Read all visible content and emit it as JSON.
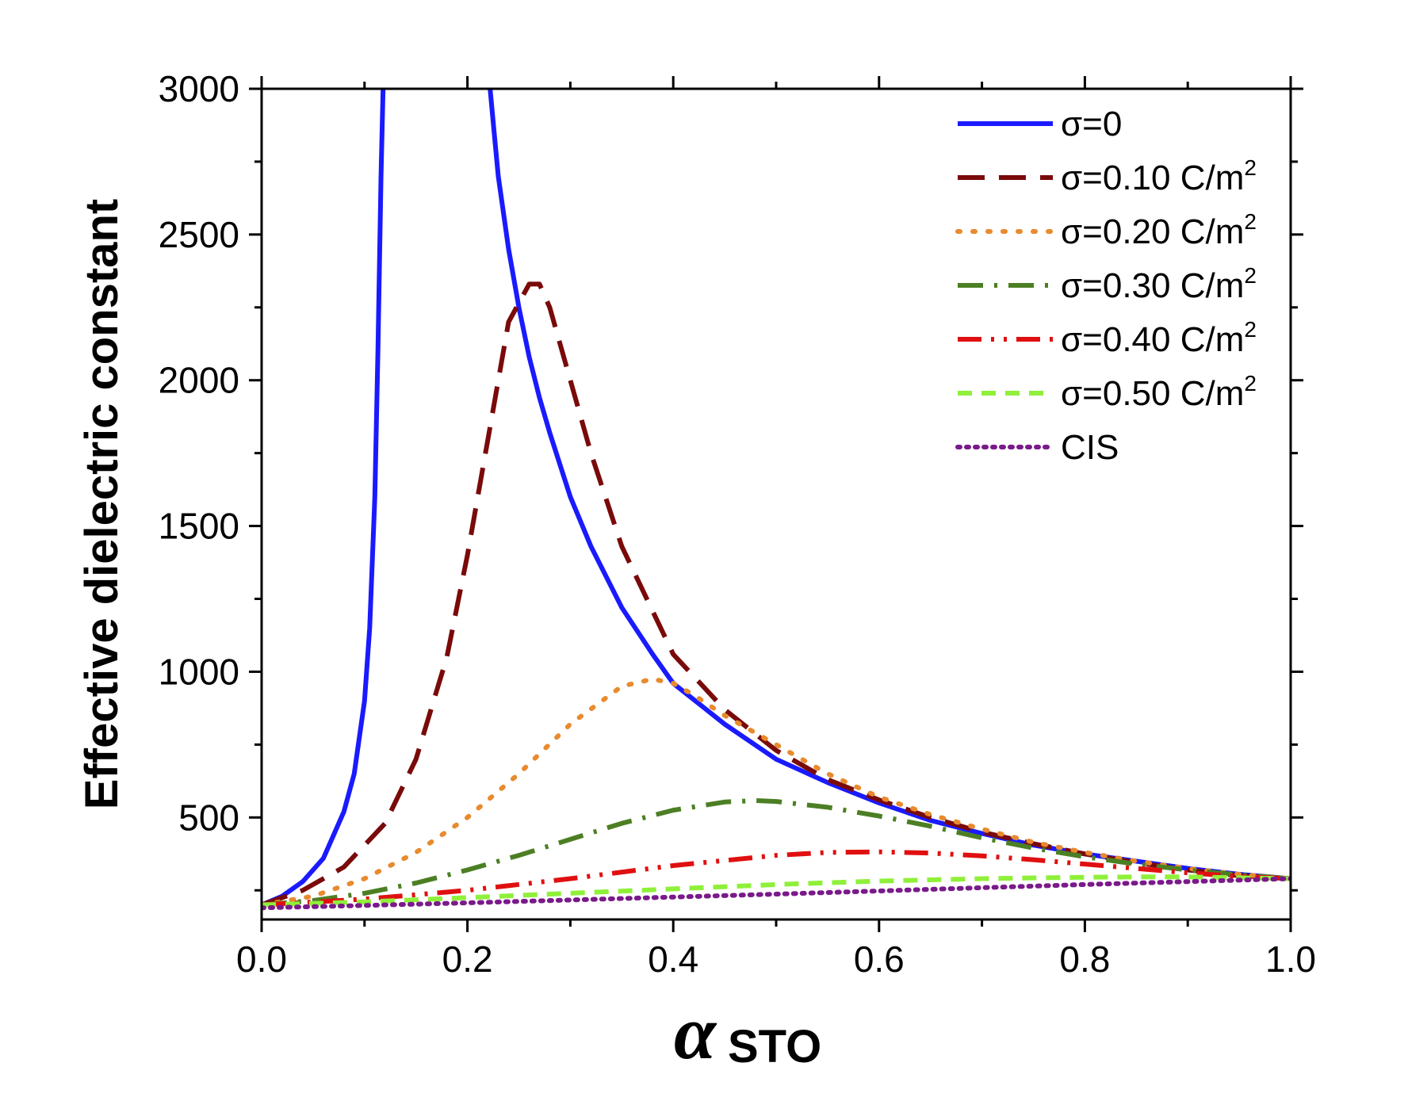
{
  "chart_data": {
    "type": "line",
    "xlabel": "α",
    "xlabel_subscript": "STO",
    "ylabel": "Effective dielectric constant",
    "xlim": [
      0.0,
      1.0
    ],
    "ylim": [
      150,
      3000
    ],
    "xticks": [
      "0.0",
      "0.2",
      "0.4",
      "0.6",
      "0.8",
      "1.0"
    ],
    "yticks": [
      "500",
      "1000",
      "1500",
      "2000",
      "2500",
      "3000"
    ],
    "legend_position": "top-right",
    "grid": false,
    "series": [
      {
        "name": "σ=0",
        "sup": "",
        "color": "#1a1aff",
        "style": "solid",
        "x": [
          0.0,
          0.02,
          0.04,
          0.06,
          0.08,
          0.09,
          0.1,
          0.105,
          0.11,
          0.113,
          0.116,
          0.118,
          null,
          0.222,
          0.226,
          0.23,
          0.24,
          0.25,
          0.26,
          0.27,
          0.28,
          0.3,
          0.32,
          0.35,
          0.38,
          0.4,
          0.45,
          0.5,
          0.55,
          0.6,
          0.65,
          0.7,
          0.75,
          0.8,
          0.85,
          0.9,
          0.95,
          1.0
        ],
        "y": [
          200,
          230,
          280,
          360,
          520,
          650,
          900,
          1150,
          1600,
          2100,
          2700,
          3000,
          null,
          3000,
          2850,
          2700,
          2450,
          2250,
          2080,
          1940,
          1820,
          1600,
          1430,
          1220,
          1060,
          960,
          820,
          700,
          620,
          550,
          490,
          445,
          405,
          375,
          350,
          325,
          305,
          290
        ]
      },
      {
        "name": "σ=0.10 C/m",
        "sup": "2",
        "color": "#7a0a0a",
        "style": "dash",
        "x": [
          0.0,
          0.04,
          0.08,
          0.12,
          0.15,
          0.18,
          0.2,
          0.22,
          0.24,
          0.26,
          0.27,
          0.28,
          0.3,
          0.32,
          0.35,
          0.4,
          0.45,
          0.5,
          0.55,
          0.6,
          0.65,
          0.7,
          0.75,
          0.8,
          0.85,
          0.9,
          0.95,
          1.0
        ],
        "y": [
          200,
          250,
          330,
          480,
          700,
          1050,
          1400,
          1800,
          2200,
          2330,
          2330,
          2250,
          2000,
          1750,
          1430,
          1060,
          870,
          730,
          630,
          560,
          500,
          450,
          410,
          375,
          345,
          320,
          300,
          290
        ]
      },
      {
        "name": "σ=0.20 C/m",
        "sup": "2",
        "color": "#e88a2e",
        "style": "dot",
        "x": [
          0.0,
          0.05,
          0.1,
          0.15,
          0.2,
          0.25,
          0.3,
          0.35,
          0.38,
          0.4,
          0.42,
          0.45,
          0.5,
          0.55,
          0.6,
          0.65,
          0.7,
          0.75,
          0.8,
          0.85,
          0.9,
          0.95,
          1.0
        ],
        "y": [
          200,
          230,
          290,
          380,
          500,
          650,
          820,
          950,
          975,
          960,
          920,
          850,
          750,
          650,
          570,
          510,
          460,
          415,
          380,
          350,
          325,
          305,
          290
        ]
      },
      {
        "name": "σ=0.30 C/m",
        "sup": "2",
        "color": "#4c7f24",
        "style": "dashdot",
        "x": [
          0.0,
          0.05,
          0.1,
          0.15,
          0.2,
          0.25,
          0.3,
          0.35,
          0.4,
          0.45,
          0.48,
          0.5,
          0.55,
          0.6,
          0.65,
          0.7,
          0.75,
          0.8,
          0.85,
          0.9,
          0.95,
          1.0
        ],
        "y": [
          200,
          215,
          240,
          275,
          320,
          370,
          425,
          480,
          525,
          553,
          558,
          555,
          535,
          505,
          470,
          430,
          395,
          365,
          340,
          320,
          303,
          290
        ]
      },
      {
        "name": "σ=0.40 C/m",
        "sup": "2",
        "color": "#e01010",
        "style": "dashdotdot",
        "x": [
          0.0,
          0.1,
          0.2,
          0.3,
          0.4,
          0.5,
          0.55,
          0.6,
          0.65,
          0.7,
          0.75,
          0.8,
          0.85,
          0.9,
          0.95,
          1.0
        ],
        "y": [
          200,
          220,
          250,
          290,
          335,
          370,
          380,
          382,
          378,
          368,
          355,
          340,
          325,
          310,
          298,
          290
        ]
      },
      {
        "name": "σ=0.50 C/m",
        "sup": "2",
        "color": "#8ff03a",
        "style": "shortdash",
        "x": [
          0.0,
          0.1,
          0.2,
          0.3,
          0.4,
          0.5,
          0.6,
          0.7,
          0.8,
          0.85,
          0.9,
          0.95,
          1.0
        ],
        "y": [
          200,
          210,
          225,
          240,
          255,
          270,
          282,
          290,
          295,
          296,
          296,
          293,
          290
        ]
      },
      {
        "name": "CIS",
        "sup": "",
        "color": "#7a1a8a",
        "style": "densedot",
        "x": [
          0.0,
          0.1,
          0.2,
          0.3,
          0.4,
          0.5,
          0.6,
          0.7,
          0.8,
          0.9,
          1.0
        ],
        "y": [
          190,
          198,
          207,
          217,
          227,
          237,
          248,
          259,
          270,
          280,
          290
        ]
      }
    ]
  }
}
